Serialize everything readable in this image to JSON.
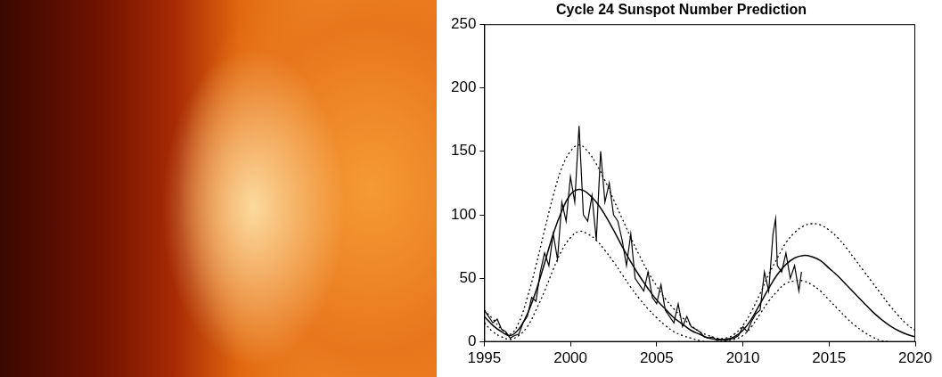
{
  "chart_data": {
    "type": "line",
    "title": "Cycle 24 Sunspot Number Prediction",
    "xlim": [
      1995,
      2020
    ],
    "xticks": [
      1995,
      2000,
      2005,
      2010,
      2015,
      2020
    ],
    "ylim": [
      0,
      250
    ],
    "yticks": [
      0,
      50,
      100,
      150,
      200,
      250
    ],
    "grid": false,
    "series": [
      {
        "color": "#000000",
        "line_style": "solid",
        "x": [
          1995.0,
          1995.25,
          1995.5,
          1995.75,
          1996.0,
          1996.25,
          1996.5,
          1996.75,
          1997.0,
          1997.25,
          1997.5,
          1997.75,
          1998.0,
          1998.25,
          1998.5,
          1998.75,
          1999.0,
          1999.25,
          1999.5,
          1999.75,
          2000.0,
          2000.25,
          2000.5,
          2000.75,
          2001.0,
          2001.25,
          2001.5,
          2001.75,
          2002.0,
          2002.25,
          2002.5,
          2002.75,
          2003.0,
          2003.25,
          2003.5,
          2003.75,
          2004.0,
          2004.25,
          2004.5,
          2004.75,
          2005.0,
          2005.25,
          2005.5,
          2005.75,
          2006.0,
          2006.25,
          2006.5,
          2006.75,
          2007.0,
          2007.25,
          2007.5,
          2007.75,
          2008.0,
          2008.25,
          2008.5,
          2008.75,
          2009.0,
          2009.25,
          2009.5,
          2009.75,
          2010.0,
          2010.25,
          2010.5,
          2010.75,
          2011.0,
          2011.25,
          2011.5,
          2011.75,
          2011.9,
          2012.0,
          2012.25,
          2012.5,
          2012.75,
          2013.0,
          2013.25,
          2013.4
        ],
        "values": [
          25,
          20,
          15,
          18,
          10,
          8,
          3,
          5,
          6,
          15,
          20,
          35,
          32,
          55,
          70,
          60,
          85,
          65,
          110,
          95,
          130,
          110,
          170,
          100,
          95,
          115,
          80,
          150,
          110,
          125,
          100,
          95,
          80,
          60,
          85,
          50,
          45,
          40,
          55,
          35,
          30,
          45,
          25,
          20,
          15,
          30,
          12,
          20,
          12,
          10,
          8,
          4,
          3,
          4,
          1,
          2,
          1,
          2,
          3,
          5,
          12,
          8,
          16,
          22,
          25,
          55,
          40,
          85,
          97,
          60,
          55,
          70,
          50,
          60,
          40,
          55
        ]
      },
      {
        "color": "#000000",
        "line_style": "solid",
        "x": [
          1995.0,
          1995.5,
          1996.0,
          1996.5,
          1997.0,
          1997.5,
          1998.0,
          1998.5,
          1999.0,
          1999.5,
          2000.0,
          2000.5,
          2001.0,
          2001.5,
          2002.0,
          2002.5,
          2003.0,
          2003.5,
          2004.0,
          2004.5,
          2005.0,
          2005.5,
          2006.0,
          2006.5,
          2007.0,
          2007.5,
          2008.0,
          2008.5,
          2009.0,
          2009.5,
          2010.0,
          2010.5,
          2011.0,
          2011.5,
          2012.0,
          2012.5,
          2013.0,
          2013.5,
          2014.0,
          2014.5,
          2015.0,
          2015.5,
          2016.0,
          2016.5,
          2017.0,
          2017.5,
          2018.0,
          2018.5,
          2019.0,
          2019.5,
          2020.0
        ],
        "values": [
          20,
          13,
          8,
          5,
          10,
          22,
          40,
          62,
          85,
          103,
          116,
          120,
          117,
          110,
          100,
          88,
          75,
          63,
          52,
          42,
          33,
          26,
          19,
          14,
          9,
          6,
          3,
          2,
          2,
          4,
          9,
          18,
          30,
          42,
          53,
          61,
          66,
          68,
          67,
          64,
          58,
          52,
          45,
          38,
          31,
          24,
          18,
          13,
          9,
          6,
          4
        ]
      },
      {
        "color": "#000000",
        "line_style": "dotted",
        "x": [
          1995.0,
          1995.5,
          1996.0,
          1996.5,
          1997.0,
          1997.5,
          1998.0,
          1998.5,
          1999.0,
          1999.5,
          2000.0,
          2000.5,
          2001.0,
          2001.5,
          2002.0,
          2002.5,
          2003.0,
          2003.5,
          2004.0,
          2004.5,
          2005.0,
          2005.5,
          2006.0,
          2006.5,
          2007.0,
          2007.5,
          2008.0,
          2008.5,
          2009.0,
          2009.5,
          2010.0,
          2010.5,
          2011.0,
          2011.5,
          2012.0,
          2012.5,
          2013.0,
          2013.5,
          2014.0,
          2014.5,
          2015.0,
          2015.5,
          2016.0,
          2016.5,
          2017.0,
          2017.5,
          2018.0,
          2018.5,
          2019.0,
          2019.5,
          2020.0
        ],
        "values": [
          25,
          18,
          10,
          6,
          15,
          35,
          60,
          88,
          115,
          137,
          150,
          155,
          150,
          140,
          127,
          112,
          97,
          82,
          68,
          55,
          44,
          34,
          26,
          19,
          13,
          8,
          5,
          3,
          3,
          6,
          13,
          24,
          38,
          53,
          66,
          78,
          86,
          91,
          93,
          92,
          88,
          82,
          74,
          65,
          56,
          47,
          38,
          29,
          21,
          14,
          9
        ]
      },
      {
        "color": "#000000",
        "line_style": "dotted",
        "x": [
          1995.0,
          1995.5,
          1996.0,
          1996.5,
          1997.0,
          1997.5,
          1998.0,
          1998.5,
          1999.0,
          1999.5,
          2000.0,
          2000.5,
          2001.0,
          2001.5,
          2002.0,
          2002.5,
          2003.0,
          2003.5,
          2004.0,
          2004.5,
          2005.0,
          2005.5,
          2006.0,
          2006.5,
          2007.0,
          2007.5,
          2008.0,
          2008.5,
          2009.0,
          2009.5,
          2010.0,
          2010.5,
          2011.0,
          2011.5,
          2012.0,
          2012.5,
          2013.0,
          2013.5,
          2014.0,
          2014.5,
          2015.0,
          2015.5,
          2016.0,
          2016.5,
          2017.0,
          2017.5,
          2018.0,
          2018.5
        ],
        "values": [
          15,
          8,
          4,
          2,
          5,
          12,
          25,
          40,
          57,
          72,
          82,
          87,
          85,
          80,
          72,
          63,
          53,
          43,
          34,
          26,
          19,
          13,
          8,
          5,
          3,
          1,
          0,
          0,
          1,
          2,
          5,
          12,
          22,
          32,
          40,
          46,
          48,
          48,
          45,
          40,
          33,
          26,
          19,
          13,
          8,
          4,
          1,
          0
        ]
      }
    ]
  }
}
